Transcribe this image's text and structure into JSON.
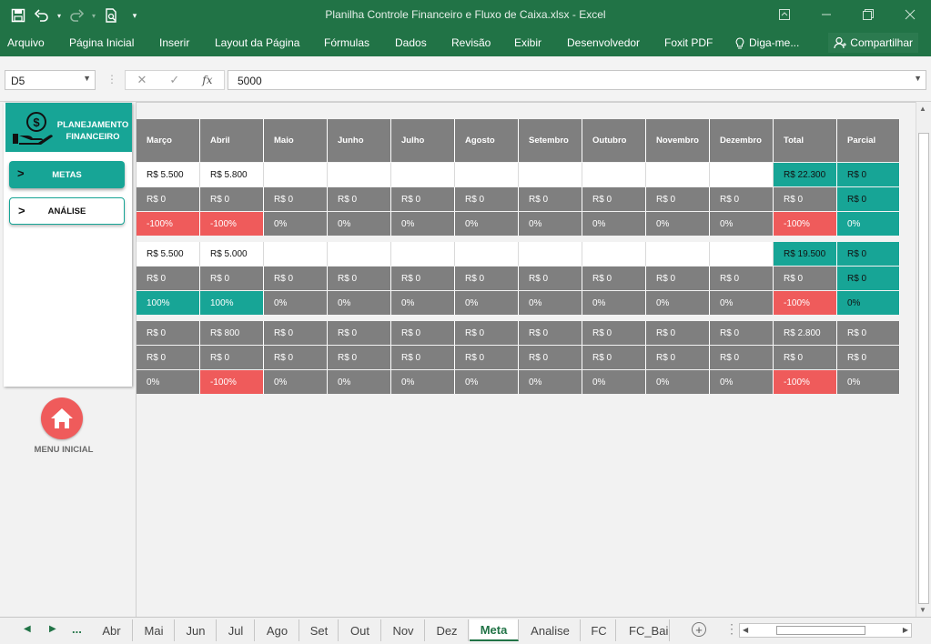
{
  "window": {
    "title": "Planilha Controle Financeiro e Fluxo de Caixa.xlsx - Excel"
  },
  "ribbon": {
    "tabs": [
      "Arquivo",
      "Página Inicial",
      "Inserir",
      "Layout da Página",
      "Fórmulas",
      "Dados",
      "Revisão",
      "Exibir",
      "Desenvolvedor",
      "Foxit PDF"
    ],
    "tell_me": "Diga-me...",
    "share": "Compartilhar"
  },
  "formula_bar": {
    "name_box": "D5",
    "value": "5000"
  },
  "panel": {
    "title_line1": "PLANEJAMENTO",
    "title_line2": "FINANCEIRO",
    "nav": [
      {
        "label": "METAS",
        "chevron": ">"
      },
      {
        "label": "ANÁLISE",
        "chevron": ">"
      }
    ],
    "home_label": "MENU INICIAL"
  },
  "table": {
    "headers": [
      "Março",
      "Abril",
      "Maio",
      "Junho",
      "Julho",
      "Agosto",
      "Setembro",
      "Outubro",
      "Novembro",
      "Dezembro",
      "Total",
      "Parcial"
    ],
    "rows": [
      {
        "style": [
          "white",
          "white",
          "white",
          "white",
          "white",
          "white",
          "white",
          "white",
          "white",
          "white",
          "teal",
          "teal"
        ],
        "values": [
          "R$ 5.500",
          "R$ 5.800",
          "",
          "",
          "",
          "",
          "",
          "",
          "",
          "",
          "R$ 22.300",
          "R$ 0"
        ]
      },
      {
        "style": [
          "gray",
          "gray",
          "gray",
          "gray",
          "gray",
          "gray",
          "gray",
          "gray",
          "gray",
          "gray",
          "gray",
          "teal"
        ],
        "values": [
          "R$ 0",
          "R$ 0",
          "R$ 0",
          "R$ 0",
          "R$ 0",
          "R$ 0",
          "R$ 0",
          "R$ 0",
          "R$ 0",
          "R$ 0",
          "R$ 0",
          "R$ 0"
        ]
      },
      {
        "style": [
          "red",
          "red",
          "gray",
          "gray",
          "gray",
          "gray",
          "gray",
          "gray",
          "gray",
          "gray",
          "red",
          "tealw"
        ],
        "values": [
          "-100%",
          "-100%",
          "0%",
          "0%",
          "0%",
          "0%",
          "0%",
          "0%",
          "0%",
          "0%",
          "-100%",
          "0%"
        ]
      },
      {
        "style": [
          "white",
          "white",
          "white",
          "white",
          "white",
          "white",
          "white",
          "white",
          "white",
          "white",
          "teal",
          "teal"
        ],
        "values": [
          "R$ 5.500",
          "R$ 5.000",
          "",
          "",
          "",
          "",
          "",
          "",
          "",
          "",
          "R$ 19.500",
          "R$ 0"
        ]
      },
      {
        "style": [
          "gray",
          "gray",
          "gray",
          "gray",
          "gray",
          "gray",
          "gray",
          "gray",
          "gray",
          "gray",
          "gray",
          "teal"
        ],
        "values": [
          "R$ 0",
          "R$ 0",
          "R$ 0",
          "R$ 0",
          "R$ 0",
          "R$ 0",
          "R$ 0",
          "R$ 0",
          "R$ 0",
          "R$ 0",
          "R$ 0",
          "R$ 0"
        ]
      },
      {
        "style": [
          "tealw",
          "tealw",
          "gray",
          "gray",
          "gray",
          "gray",
          "gray",
          "gray",
          "gray",
          "gray",
          "red",
          "teal"
        ],
        "values": [
          "100%",
          "100%",
          "0%",
          "0%",
          "0%",
          "0%",
          "0%",
          "0%",
          "0%",
          "0%",
          "-100%",
          "0%"
        ]
      },
      {
        "style": [
          "gray",
          "gray",
          "gray",
          "gray",
          "gray",
          "gray",
          "gray",
          "gray",
          "gray",
          "gray",
          "gray",
          "gray"
        ],
        "values": [
          "R$ 0",
          "R$ 800",
          "R$ 0",
          "R$ 0",
          "R$ 0",
          "R$ 0",
          "R$ 0",
          "R$ 0",
          "R$ 0",
          "R$ 0",
          "R$ 2.800",
          "R$ 0"
        ]
      },
      {
        "style": [
          "gray",
          "gray",
          "gray",
          "gray",
          "gray",
          "gray",
          "gray",
          "gray",
          "gray",
          "gray",
          "gray",
          "gray"
        ],
        "values": [
          "R$ 0",
          "R$ 0",
          "R$ 0",
          "R$ 0",
          "R$ 0",
          "R$ 0",
          "R$ 0",
          "R$ 0",
          "R$ 0",
          "R$ 0",
          "R$ 0",
          "R$ 0"
        ]
      },
      {
        "style": [
          "gray",
          "red",
          "gray",
          "gray",
          "gray",
          "gray",
          "gray",
          "gray",
          "gray",
          "gray",
          "red",
          "gray"
        ],
        "values": [
          "0%",
          "-100%",
          "0%",
          "0%",
          "0%",
          "0%",
          "0%",
          "0%",
          "0%",
          "0%",
          "-100%",
          "0%"
        ]
      }
    ]
  },
  "sheet_tabs": {
    "overflow": "...",
    "tabs": [
      "Abr",
      "Mai",
      "Jun",
      "Jul",
      "Ago",
      "Set",
      "Out",
      "Nov",
      "Dez",
      "Meta",
      "Analise",
      "FC",
      "FC_Bai"
    ],
    "active": "Meta"
  },
  "colors": {
    "excel_green": "#217346",
    "teal": "#17a596",
    "red": "#ef5b5b",
    "gray": "#7f7f7f"
  }
}
